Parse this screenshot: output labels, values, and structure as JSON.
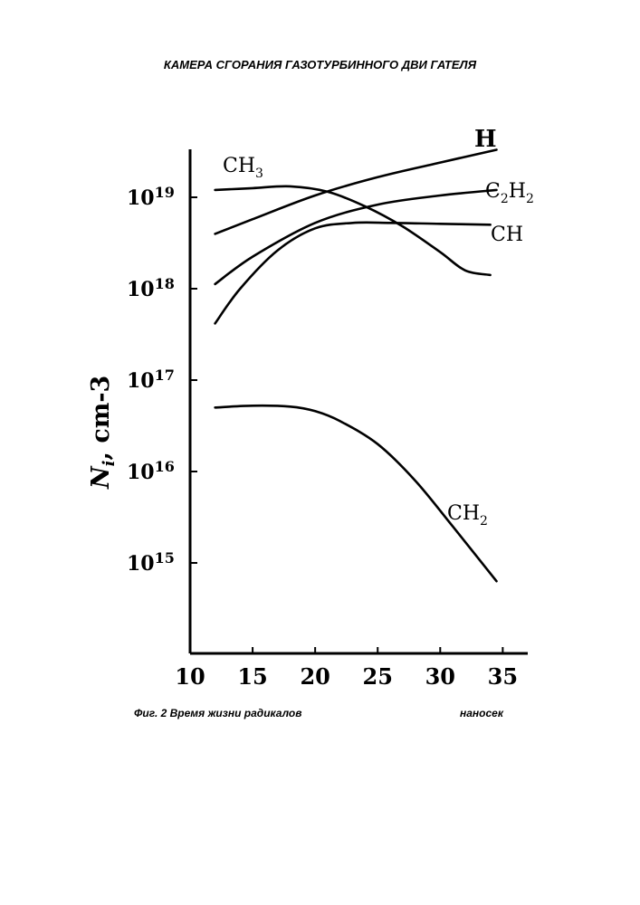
{
  "header": {
    "title": "КАМЕРА СГОРАНИЯ ГАЗОТУРБИННОГО ДВИ ГАТЕЛЯ"
  },
  "caption": {
    "figure_text": "Фиг. 2 Время жизни радикалов",
    "unit_text": "наносек"
  },
  "chart_data": {
    "type": "line",
    "xlabel": "",
    "ylabel": "N_i, cm-3",
    "ylabel_parts": {
      "main": "N",
      "sub": "i",
      "rest": " cm-3"
    },
    "xlim": [
      10,
      37
    ],
    "ylog_range": [
      14,
      19.5
    ],
    "x_ticks": [
      10,
      15,
      20,
      25,
      30,
      35
    ],
    "x_tick_labels": [
      "10",
      "15",
      "20",
      "25",
      "30",
      "35"
    ],
    "y_ticks": [
      {
        "log": 15,
        "base": "10",
        "exp": "15"
      },
      {
        "log": 16,
        "base": "10",
        "exp": "16"
      },
      {
        "log": 17,
        "base": "10",
        "exp": "17"
      },
      {
        "log": 18,
        "base": "10",
        "exp": "18"
      },
      {
        "log": 19,
        "base": "10",
        "exp": "19"
      }
    ],
    "scale": "log",
    "grid": false,
    "series": [
      {
        "name": "H",
        "label_parts": [
          {
            "t": "H",
            "sub": false
          }
        ],
        "x": [
          12,
          15,
          20,
          25,
          30,
          34.5
        ],
        "log_y": [
          18.6,
          18.76,
          19.02,
          19.22,
          19.38,
          19.52
        ]
      },
      {
        "name": "CH3",
        "label_parts": [
          {
            "t": "CH",
            "sub": false
          },
          {
            "t": "3",
            "sub": true
          }
        ],
        "x": [
          12,
          15,
          18,
          21,
          24,
          27,
          30,
          32,
          34
        ],
        "log_y": [
          19.08,
          19.1,
          19.12,
          19.06,
          18.9,
          18.68,
          18.4,
          18.2,
          18.15
        ]
      },
      {
        "name": "C2H2",
        "label_parts": [
          {
            "t": "C",
            "sub": false
          },
          {
            "t": "2",
            "sub": true
          },
          {
            "t": "H",
            "sub": false
          },
          {
            "t": "2",
            "sub": true
          }
        ],
        "x": [
          12,
          15,
          20,
          25,
          30,
          34.5
        ],
        "log_y": [
          18.05,
          18.35,
          18.72,
          18.92,
          19.02,
          19.08
        ]
      },
      {
        "name": "CH",
        "label_parts": [
          {
            "t": "CH",
            "sub": false
          }
        ],
        "x": [
          12,
          14,
          17,
          20,
          23,
          26,
          30,
          34
        ],
        "log_y": [
          17.62,
          18.0,
          18.42,
          18.66,
          18.72,
          18.72,
          18.71,
          18.7
        ]
      },
      {
        "name": "CH2",
        "label_parts": [
          {
            "t": "CH",
            "sub": false
          },
          {
            "t": "2",
            "sub": true
          }
        ],
        "x": [
          12,
          15,
          18,
          20,
          22,
          25,
          28,
          31,
          34.5
        ],
        "log_y": [
          16.7,
          16.72,
          16.71,
          16.66,
          16.55,
          16.3,
          15.9,
          15.4,
          14.8
        ]
      }
    ]
  }
}
